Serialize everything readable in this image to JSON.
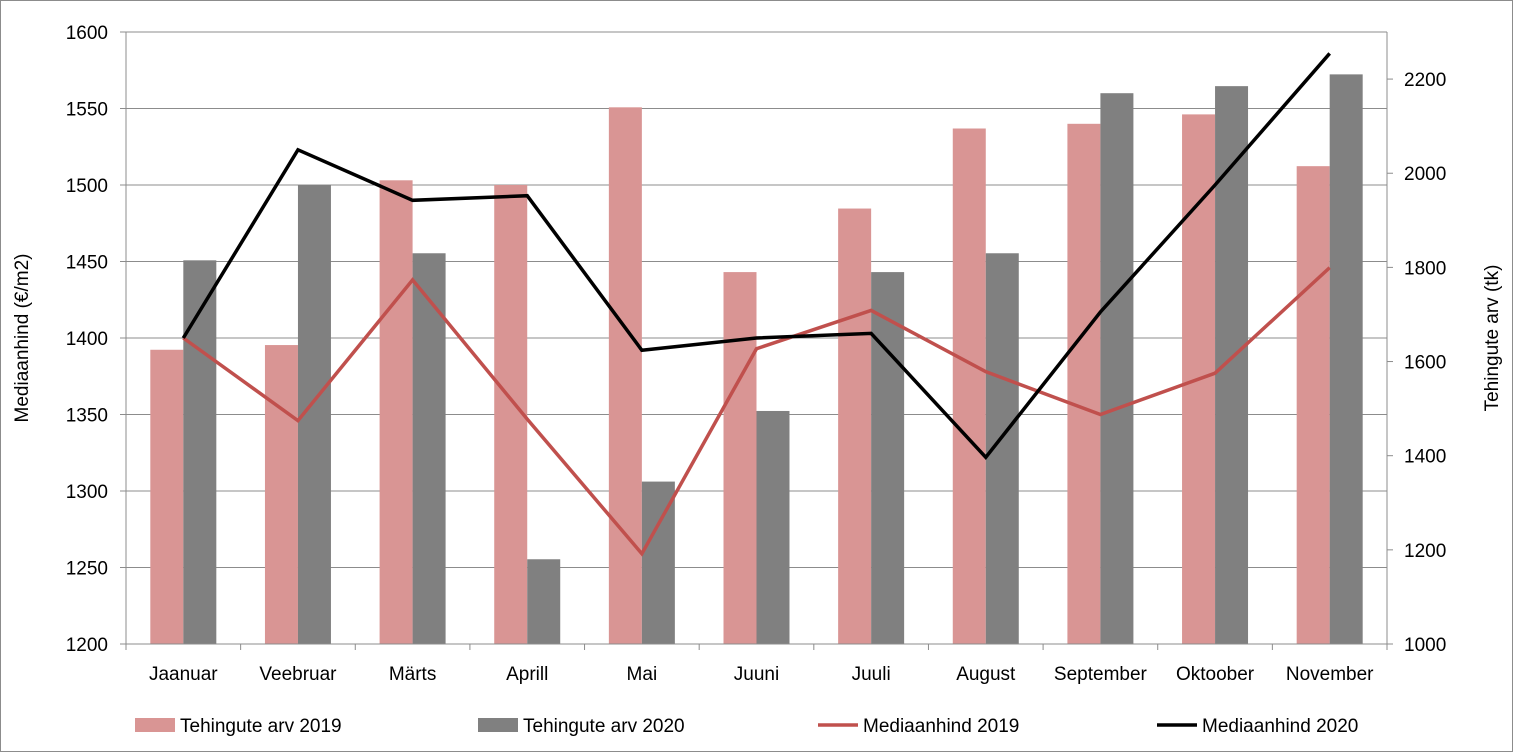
{
  "chart_data": {
    "type": "bar",
    "categories": [
      "Jaanuar",
      "Veebruar",
      "Märts",
      "Aprill",
      "Mai",
      "Juuni",
      "Juuli",
      "August",
      "September",
      "Oktoober",
      "November"
    ],
    "bar_series": [
      {
        "name": "Tehingute arv 2019",
        "color": "#d99594",
        "axis": "right",
        "values": [
          1625,
          1635,
          1985,
          1975,
          2140,
          1790,
          1925,
          2095,
          2105,
          2125,
          2015
        ]
      },
      {
        "name": "Tehingute arv 2020",
        "color": "#808080",
        "axis": "right",
        "values": [
          1815,
          1975,
          1830,
          1180,
          1345,
          1495,
          1790,
          1830,
          2170,
          2185,
          2210
        ]
      }
    ],
    "line_series": [
      {
        "name": "Mediaanhind 2019",
        "color": "#c0504d",
        "axis": "left",
        "values": [
          1400,
          1346,
          1438,
          1347,
          1259,
          1393,
          1418,
          1378,
          1350,
          1377,
          1446
        ]
      },
      {
        "name": "Mediaanhind 2020",
        "color": "#000000",
        "axis": "left",
        "values": [
          1400,
          1523,
          1490,
          1493,
          1392,
          1400,
          1403,
          1322,
          1417,
          1500,
          1586
        ]
      }
    ],
    "left_axis": {
      "label": "Mediaanhind (€/m2)",
      "ylim": [
        1200,
        1600
      ],
      "ticks": [
        "1200",
        "1250",
        "1300",
        "1350",
        "1400",
        "1450",
        "1500",
        "1550",
        "1600"
      ]
    },
    "right_axis": {
      "label": "Tehingute arv (tk)",
      "ylim": [
        1000,
        2300
      ],
      "ticks": [
        "1000",
        "1200",
        "1400",
        "1600",
        "1800",
        "2000",
        "2200"
      ]
    },
    "grid": true,
    "legend_position": "bottom"
  }
}
